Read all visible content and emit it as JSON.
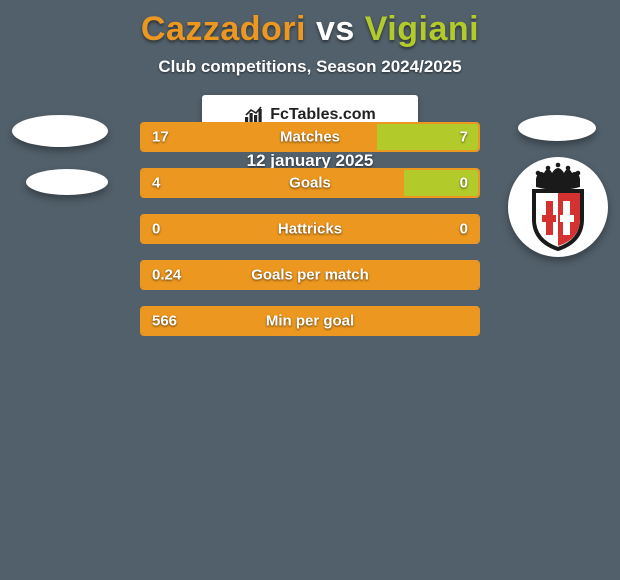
{
  "background_color": "#52606b",
  "title": {
    "player1": "Cazzadori",
    "vs": " vs ",
    "player2": "Vigiani",
    "player1_color": "#ec971f",
    "player2_color": "#b2cb2a"
  },
  "subtitle": "Club competitions, Season 2024/2025",
  "bar_border_color": "#ec971f",
  "stats": [
    {
      "label": "Matches",
      "left_val": "17",
      "right_val": "7",
      "left_pct": 70,
      "right_pct": 30,
      "left_color": "#ec971f",
      "right_color": "#b2cb2a"
    },
    {
      "label": "Goals",
      "left_val": "4",
      "right_val": "0",
      "left_pct": 78,
      "right_pct": 22,
      "left_color": "#ec971f",
      "right_color": "#b2cb2a"
    },
    {
      "label": "Hattricks",
      "left_val": "0",
      "right_val": "0",
      "left_pct": 100,
      "right_pct": 0,
      "left_color": "#ec971f",
      "right_color": "#b2cb2a"
    },
    {
      "label": "Goals per match",
      "left_val": "0.24",
      "right_val": "",
      "left_pct": 100,
      "right_pct": 0,
      "left_color": "#ec971f",
      "right_color": "#b2cb2a"
    },
    {
      "label": "Min per goal",
      "left_val": "566",
      "right_val": "",
      "left_pct": 100,
      "right_pct": 0,
      "left_color": "#ec971f",
      "right_color": "#b2cb2a"
    }
  ],
  "branding_text": "FcTables.com",
  "date": "12 january 2025",
  "crest": {
    "crown_fill": "#1a1a1a",
    "shield_left": "#ffffff",
    "shield_right": "#d43131",
    "shield_border": "#1a1a1a"
  }
}
